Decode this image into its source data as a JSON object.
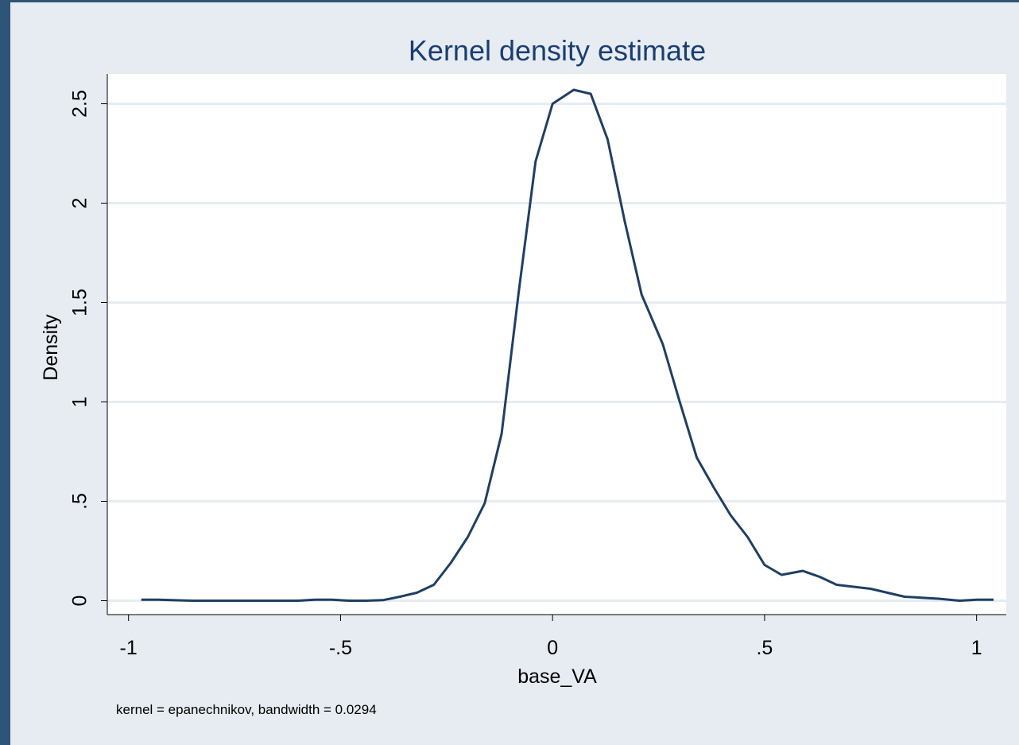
{
  "chart_data": {
    "type": "line",
    "title": "Kernel density estimate",
    "xlabel": "base_VA",
    "ylabel": "Density",
    "note": "kernel = epanechnikov, bandwidth = 0.0294",
    "xlim": [
      -1.05,
      1.07
    ],
    "ylim": [
      -0.07,
      2.65
    ],
    "x_ticks": [
      -1,
      -0.5,
      0,
      0.5,
      1
    ],
    "x_tick_labels": [
      "-1",
      "-.5",
      "0",
      ".5",
      "1"
    ],
    "y_ticks": [
      0,
      0.5,
      1,
      1.5,
      2,
      2.5
    ],
    "y_tick_labels": [
      "0",
      ".5",
      "1",
      "1.5",
      "2",
      "2.5"
    ],
    "grid": "horizontal",
    "colors": {
      "line": "#1f3f63",
      "grid": "#e6ecf2",
      "background": "#e6ecf2",
      "plot_area": "#ffffff",
      "title": "#1a3e72"
    },
    "series": [
      {
        "x": [
          -0.97,
          -0.93,
          -0.85,
          -0.77,
          -0.69,
          -0.6,
          -0.56,
          -0.52,
          -0.48,
          -0.44,
          -0.4,
          -0.36,
          -0.32,
          -0.28,
          -0.24,
          -0.2,
          -0.16,
          -0.12,
          -0.08,
          -0.04,
          0.0,
          0.05,
          0.09,
          0.13,
          0.17,
          0.21,
          0.26,
          0.3,
          0.34,
          0.38,
          0.42,
          0.46,
          0.5,
          0.54,
          0.59,
          0.63,
          0.67,
          0.75,
          0.79,
          0.83,
          0.87,
          0.91,
          0.96,
          1.0,
          1.04
        ],
        "y": [
          0.005,
          0.005,
          0.0,
          0.0,
          0.0,
          0.0,
          0.005,
          0.005,
          0.0,
          0.0,
          0.003,
          0.02,
          0.04,
          0.08,
          0.19,
          0.32,
          0.49,
          0.84,
          1.55,
          2.21,
          2.5,
          2.57,
          2.55,
          2.32,
          1.91,
          1.54,
          1.29,
          1.0,
          0.72,
          0.57,
          0.43,
          0.32,
          0.18,
          0.13,
          0.15,
          0.12,
          0.08,
          0.06,
          0.04,
          0.02,
          0.015,
          0.01,
          0.0,
          0.005,
          0.005
        ]
      }
    ]
  }
}
